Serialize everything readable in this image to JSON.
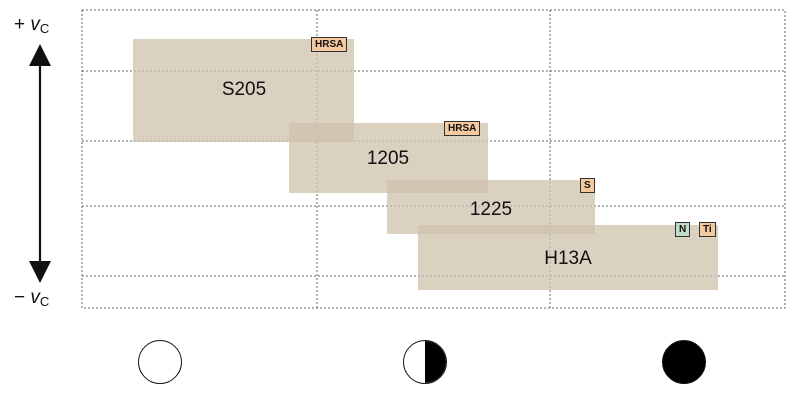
{
  "axis": {
    "top_label": {
      "sign": "+",
      "symbol": "v",
      "subscript": "C"
    },
    "bottom_label": {
      "sign": "−",
      "symbol": "v",
      "subscript": "C"
    }
  },
  "bands": [
    {
      "name": "S205",
      "tags": [
        {
          "text": "HRSA",
          "color": "#f5c99e"
        }
      ]
    },
    {
      "name": "1205",
      "tags": [
        {
          "text": "HRSA",
          "color": "#f5c99e"
        }
      ]
    },
    {
      "name": "1225",
      "tags": [
        {
          "text": "S",
          "color": "#f5c99e"
        }
      ]
    },
    {
      "name": "H13A",
      "tags": [
        {
          "text": "N",
          "color": "#bfdcc8"
        },
        {
          "text": "Ti",
          "color": "#f5c99e"
        }
      ]
    }
  ],
  "bottom_symbols": [
    {
      "icon": "empty-circle-icon"
    },
    {
      "icon": "half-filled-circle-icon"
    },
    {
      "icon": "filled-circle-icon"
    }
  ],
  "colors": {
    "band_fill": "#cdc1ac",
    "tag_orange": "#f5c99e",
    "tag_green": "#bfdcc8",
    "grid": "#666666"
  }
}
